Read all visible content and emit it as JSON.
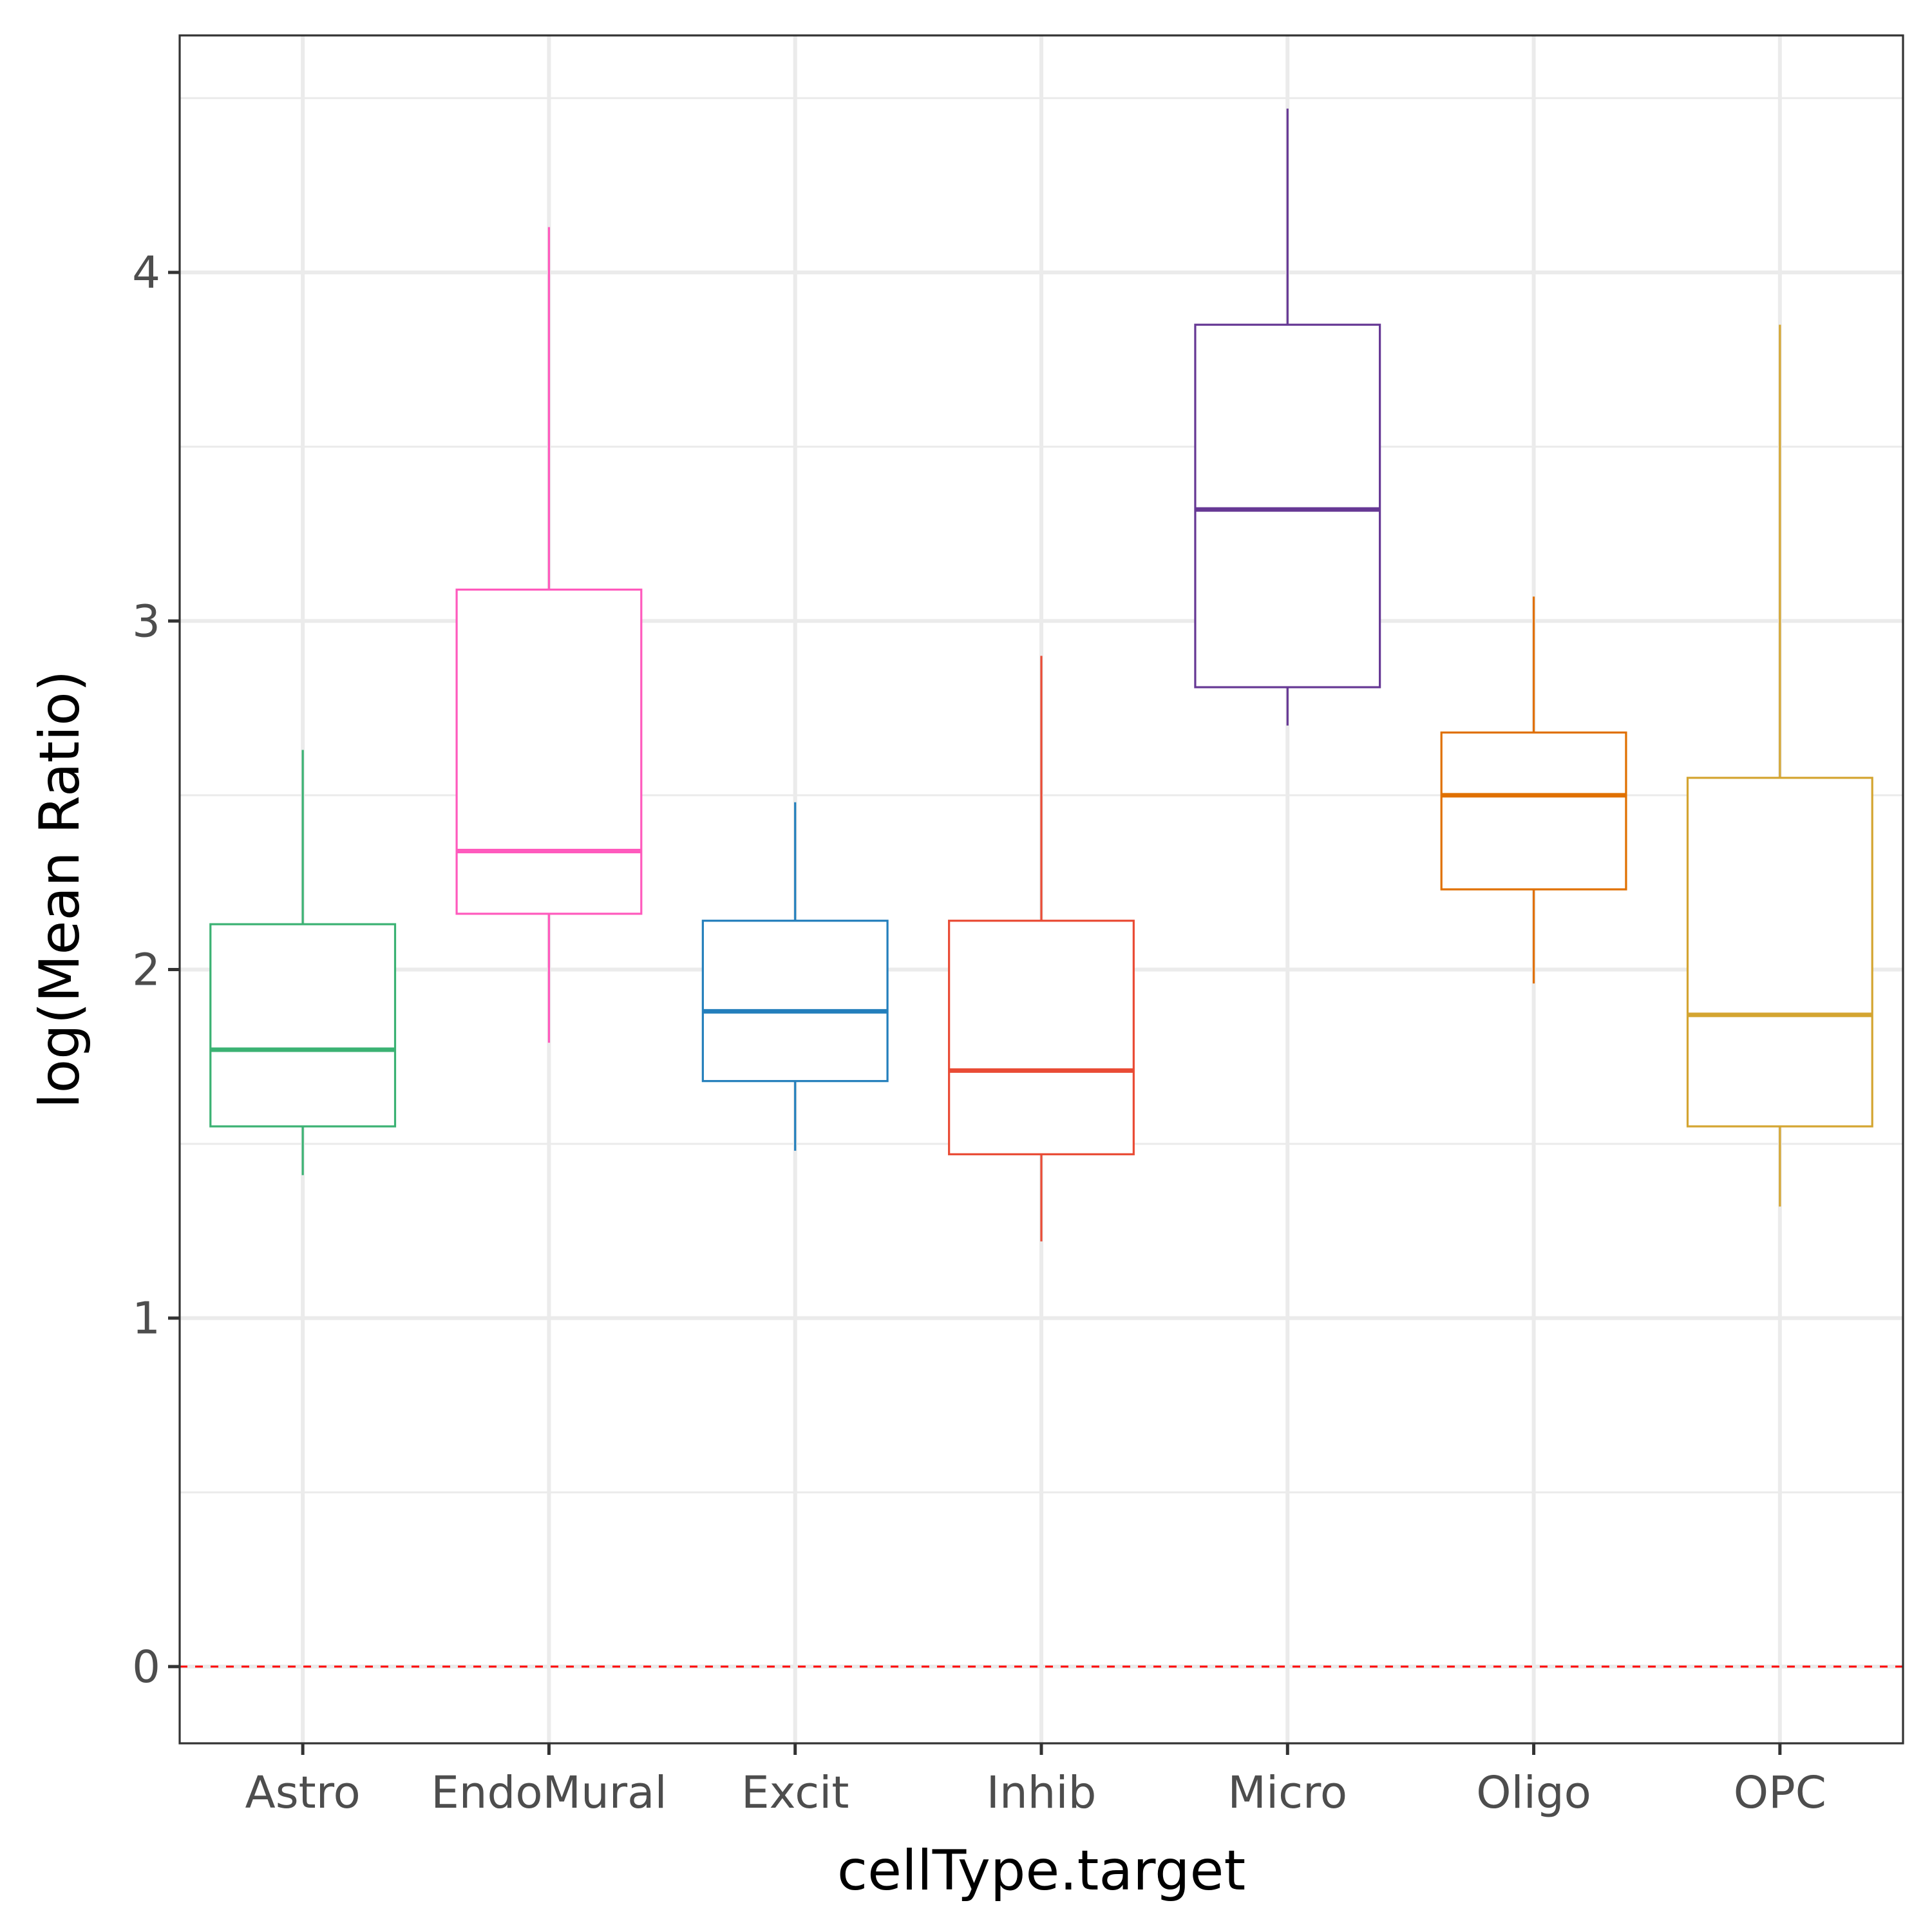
{
  "chart_data": {
    "type": "box",
    "xlabel": "cellType.target",
    "ylabel": "log(Mean Ratio)",
    "ylim": [
      -0.22,
      4.68
    ],
    "yticks": [
      0,
      1,
      2,
      3,
      4
    ],
    "grid": true,
    "reference_line": {
      "y": 0,
      "style": "dashed",
      "color": "#ff0000"
    },
    "categories": [
      "Astro",
      "EndoMural",
      "Excit",
      "Inhib",
      "Micro",
      "Oligo",
      "OPC"
    ],
    "boxes": [
      {
        "category": "Astro",
        "whisker_low": 1.41,
        "q1": 1.55,
        "median": 1.77,
        "q3": 2.13,
        "whisker_high": 2.63,
        "color": "#3BB273"
      },
      {
        "category": "EndoMural",
        "whisker_low": 1.79,
        "q1": 2.16,
        "median": 2.34,
        "q3": 3.09,
        "whisker_high": 4.13,
        "color": "#FF5ABD"
      },
      {
        "category": "Excit",
        "whisker_low": 1.48,
        "q1": 1.68,
        "median": 1.88,
        "q3": 2.14,
        "whisker_high": 2.48,
        "color": "#247FBC"
      },
      {
        "category": "Inhib",
        "whisker_low": 1.22,
        "q1": 1.47,
        "median": 1.71,
        "q3": 2.14,
        "whisker_high": 2.9,
        "color": "#E94B35"
      },
      {
        "category": "Micro",
        "whisker_low": 2.7,
        "q1": 2.81,
        "median": 3.32,
        "q3": 3.85,
        "whisker_high": 4.47,
        "color": "#663894"
      },
      {
        "category": "Oligo",
        "whisker_low": 1.96,
        "q1": 2.23,
        "median": 2.5,
        "q3": 2.68,
        "whisker_high": 3.07,
        "color": "#E07000"
      },
      {
        "category": "OPC",
        "whisker_low": 1.32,
        "q1": 1.55,
        "median": 1.87,
        "q3": 2.55,
        "whisker_high": 3.85,
        "color": "#D4A531"
      }
    ]
  }
}
